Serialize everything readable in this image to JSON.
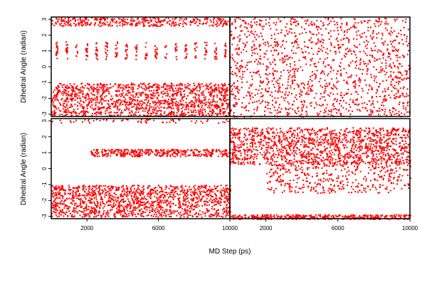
{
  "chart_data": {
    "type": "scatter",
    "layout": "2x2 grid",
    "xlabel": "MD Step (ps)",
    "ylabel": "Dihedral Angle (radian)",
    "x_ticks": [
      2000,
      6000,
      10000
    ],
    "y_ticks": [
      3,
      2,
      1,
      0,
      -1,
      -2,
      -3
    ],
    "xlim": [
      0,
      10000
    ],
    "ylim": [
      -3.14,
      3.14
    ],
    "marker_color": "#ff0000",
    "panels": [
      {
        "id": "top-left",
        "description_bands": [
          {
            "x_range": [
              0,
              10000
            ],
            "y_range": [
              -3.1,
              -1.0
            ],
            "density": "dense"
          },
          {
            "x_range": [
              0,
              10000
            ],
            "y_range": [
              2.6,
              3.14
            ],
            "density": "moderate"
          },
          {
            "x_range": [
              0,
              10000
            ],
            "y_range": [
              0.5,
              1.6
            ],
            "density": "intermittent"
          }
        ]
      },
      {
        "id": "top-right",
        "description_bands": [
          {
            "x_range": [
              0,
              10000
            ],
            "y_range": [
              -3.14,
              3.14
            ],
            "density": "dense"
          }
        ]
      },
      {
        "id": "bottom-left",
        "description_bands": [
          {
            "x_range": [
              0,
              10000
            ],
            "y_range": [
              -3.0,
              -1.0
            ],
            "density": "dense"
          },
          {
            "x_range": [
              2200,
              10000
            ],
            "y_range": [
              0.8,
              1.25
            ],
            "density": "moderate"
          },
          {
            "x_range": [
              0,
              10000
            ],
            "y_range": [
              2.9,
              3.14
            ],
            "density": "sparse"
          }
        ]
      },
      {
        "id": "bottom-right",
        "description_bands": [
          {
            "x_range": [
              0,
              10000
            ],
            "y_range": [
              0.3,
              2.6
            ],
            "density": "dense"
          },
          {
            "x_range": [
              2000,
              10000
            ],
            "y_range": [
              -1.5,
              0.3
            ],
            "density": "moderate"
          },
          {
            "x_range": [
              0,
              10000
            ],
            "y_range": [
              -3.14,
              -2.85
            ],
            "density": "moderate"
          }
        ]
      }
    ]
  }
}
